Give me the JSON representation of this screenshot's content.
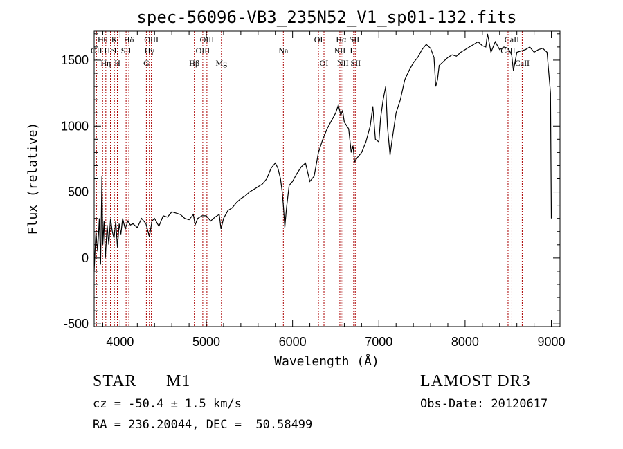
{
  "chart_data": {
    "type": "line",
    "title": "spec-56096-VB3_235N52_V1_sp01-132.fits",
    "xlabel": "Wavelength (Å)",
    "ylabel": "Flux (relative)",
    "xlim": [
      3700,
      9100
    ],
    "ylim": [
      -520,
      1720
    ],
    "xticks": [
      4000,
      5000,
      6000,
      7000,
      8000,
      9000
    ],
    "yticks": [
      -500,
      0,
      500,
      1000,
      1500
    ],
    "line_color": "#000000",
    "marker_color": "#aa0000",
    "series": [
      {
        "name": "flux",
        "x": [
          3700,
          3720,
          3740,
          3760,
          3775,
          3790,
          3800,
          3815,
          3830,
          3850,
          3870,
          3890,
          3910,
          3930,
          3950,
          3970,
          3990,
          4010,
          4030,
          4060,
          4090,
          4120,
          4150,
          4200,
          4250,
          4300,
          4340,
          4370,
          4400,
          4450,
          4500,
          4550,
          4600,
          4650,
          4700,
          4750,
          4800,
          4850,
          4870,
          4900,
          4950,
          5000,
          5050,
          5100,
          5150,
          5170,
          5185,
          5200,
          5250,
          5300,
          5350,
          5400,
          5450,
          5500,
          5550,
          5600,
          5650,
          5700,
          5750,
          5800,
          5830,
          5860,
          5880,
          5895,
          5910,
          5930,
          5960,
          6000,
          6050,
          6100,
          6150,
          6200,
          6250,
          6300,
          6350,
          6400,
          6450,
          6500,
          6530,
          6560,
          6580,
          6600,
          6650,
          6680,
          6700,
          6720,
          6750,
          6800,
          6850,
          6900,
          6930,
          6960,
          7000,
          7020,
          7050,
          7080,
          7100,
          7130,
          7150,
          7200,
          7250,
          7300,
          7350,
          7400,
          7450,
          7500,
          7550,
          7600,
          7640,
          7660,
          7680,
          7700,
          7750,
          7800,
          7850,
          7900,
          7950,
          8000,
          8050,
          8100,
          8150,
          8200,
          8240,
          8260,
          8300,
          8350,
          8400,
          8450,
          8500,
          8540,
          8560,
          8600,
          8650,
          8700,
          8750,
          8800,
          8850,
          8900,
          8950,
          8990,
          9000
        ],
        "y": [
          -100,
          200,
          50,
          300,
          -50,
          620,
          100,
          280,
          0,
          250,
          100,
          300,
          200,
          150,
          280,
          80,
          260,
          180,
          300,
          220,
          280,
          250,
          260,
          230,
          300,
          260,
          160,
          280,
          300,
          240,
          320,
          310,
          350,
          340,
          330,
          300,
          290,
          330,
          250,
          300,
          320,
          320,
          280,
          310,
          330,
          220,
          260,
          300,
          360,
          380,
          420,
          450,
          470,
          500,
          520,
          540,
          560,
          600,
          680,
          720,
          680,
          600,
          500,
          380,
          230,
          380,
          550,
          580,
          640,
          690,
          720,
          580,
          620,
          800,
          900,
          980,
          1040,
          1100,
          1160,
          1080,
          1120,
          1030,
          980,
          800,
          850,
          730,
          760,
          800,
          880,
          1000,
          1150,
          900,
          880,
          1060,
          1200,
          1300,
          1000,
          780,
          880,
          1100,
          1200,
          1350,
          1420,
          1480,
          1520,
          1580,
          1620,
          1590,
          1520,
          1300,
          1350,
          1460,
          1490,
          1520,
          1540,
          1530,
          1560,
          1580,
          1600,
          1620,
          1640,
          1610,
          1600,
          1700,
          1560,
          1640,
          1580,
          1600,
          1590,
          1540,
          1420,
          1560,
          1570,
          1580,
          1600,
          1560,
          1580,
          1590,
          1560,
          1250,
          300
        ]
      }
    ],
    "spectral_lines": [
      {
        "label": "Hθ",
        "x": 3798,
        "row": 1
      },
      {
        "label": "OII",
        "x": 3727,
        "row": 2
      },
      {
        "label": "Hη",
        "x": 3835,
        "row": 3
      },
      {
        "label": "HeI",
        "x": 3889,
        "row": 2
      },
      {
        "label": "K",
        "x": 3934,
        "row": 1
      },
      {
        "label": "H",
        "x": 3969,
        "row": 3
      },
      {
        "label": "SII",
        "x": 4070,
        "row": 2
      },
      {
        "label": "Hδ",
        "x": 4102,
        "row": 1
      },
      {
        "label": "G",
        "x": 4305,
        "row": 3
      },
      {
        "label": "Hγ",
        "x": 4340,
        "row": 2
      },
      {
        "label": "OIII",
        "x": 4363,
        "row": 1
      },
      {
        "label": "Hβ",
        "x": 4861,
        "row": 3
      },
      {
        "label": "OIII",
        "x": 4959,
        "row": 2
      },
      {
        "label": "OIII",
        "x": 5007,
        "row": 1
      },
      {
        "label": "Mg",
        "x": 5175,
        "row": 3
      },
      {
        "label": "Na",
        "x": 5893,
        "row": 2
      },
      {
        "label": "OI",
        "x": 6300,
        "row": 1
      },
      {
        "label": "OI",
        "x": 6364,
        "row": 3
      },
      {
        "label": "NII",
        "x": 6548,
        "row": 2
      },
      {
        "label": "Hα",
        "x": 6563,
        "row": 1
      },
      {
        "label": "NII",
        "x": 6583,
        "row": 3
      },
      {
        "label": "Li",
        "x": 6708,
        "row": 2
      },
      {
        "label": "SII",
        "x": 6716,
        "row": 1
      },
      {
        "label": "SII",
        "x": 6731,
        "row": 3
      },
      {
        "label": "CaII",
        "x": 8498,
        "row": 2
      },
      {
        "label": "CaII",
        "x": 8542,
        "row": 1
      },
      {
        "label": "CaII",
        "x": 8662,
        "row": 3
      }
    ]
  },
  "info": {
    "object_class": "STAR",
    "subclass": "M1",
    "survey": "LAMOST DR3",
    "velocity": "cz = -50.4 ± 1.5 km/s",
    "obs_date": "Obs-Date: 20120617",
    "coords": "RA = 236.20044, DEC =  50.58499"
  }
}
